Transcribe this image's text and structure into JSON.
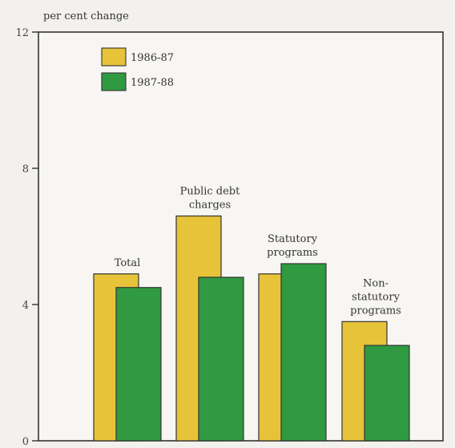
{
  "chart_data": {
    "type": "bar",
    "ylabel": "per cent change",
    "ylim": [
      0,
      12
    ],
    "yticks": [
      0,
      4,
      8,
      12
    ],
    "categories": [
      {
        "lines": [
          "Total"
        ]
      },
      {
        "lines": [
          "Public debt",
          "charges"
        ]
      },
      {
        "lines": [
          "Statutory",
          "programs"
        ]
      },
      {
        "lines": [
          "Non-",
          "statutory",
          "programs"
        ]
      }
    ],
    "series": [
      {
        "name": "1986-87",
        "values": [
          4.9,
          6.6,
          4.9,
          3.5
        ],
        "color": "#e7c33a"
      },
      {
        "name": "1987-88",
        "values": [
          4.5,
          4.8,
          5.2,
          2.8
        ],
        "color": "#2f9a42"
      }
    ],
    "legend_position": "top-left",
    "grid": false
  }
}
